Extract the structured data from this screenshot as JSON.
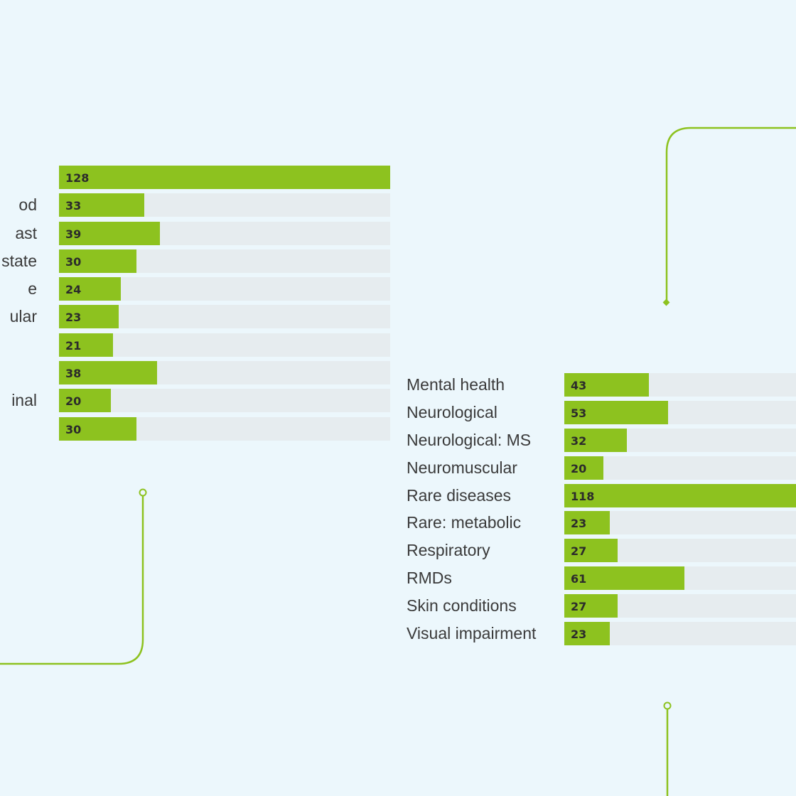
{
  "chart_data": [
    {
      "type": "bar",
      "orientation": "horizontal",
      "categories": [
        "",
        "od",
        "ast",
        "state",
        "e",
        "ular",
        "",
        "",
        "inal",
        ""
      ],
      "values": [
        128,
        33,
        39,
        30,
        24,
        23,
        21,
        38,
        20,
        30
      ],
      "xlim": [
        0,
        128
      ],
      "title": "",
      "xlabel": "",
      "ylabel": "",
      "grid": false
    },
    {
      "type": "bar",
      "orientation": "horizontal",
      "categories": [
        "Mental health",
        "Neurological",
        "Neurological: MS",
        "Neuromuscular",
        "Rare diseases",
        "Rare: metabolic",
        "Respiratory",
        "RMDs",
        "Skin conditions",
        "Visual impairment"
      ],
      "values": [
        43,
        53,
        32,
        20,
        118,
        23,
        27,
        61,
        27,
        23
      ],
      "xlim": [
        0,
        118
      ],
      "title": "",
      "xlabel": "",
      "ylabel": "",
      "grid": false
    }
  ],
  "colors": {
    "background": "#ecf7fc",
    "bar_fill": "#8dc21f",
    "bar_track": "#e6ecef",
    "connector_line": "#8dc21f"
  }
}
